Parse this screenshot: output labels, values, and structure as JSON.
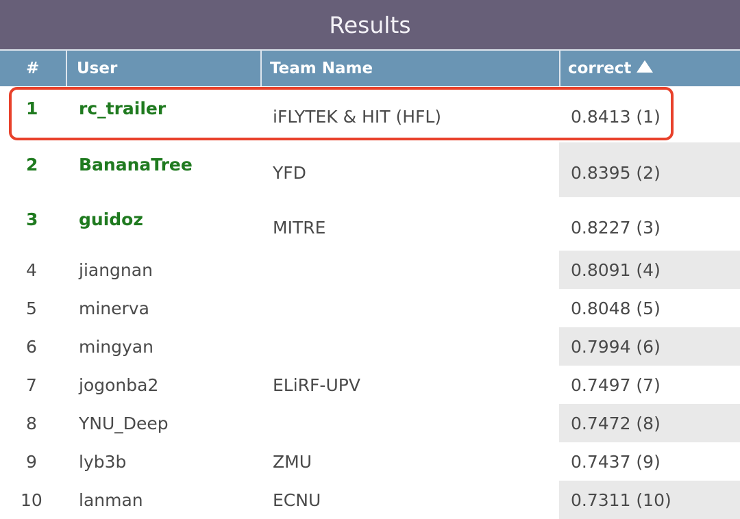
{
  "title": "Results",
  "columns": {
    "rank": "#",
    "user": "User",
    "team": "Team Name",
    "correct": "correct"
  },
  "sort": {
    "column": "correct",
    "direction": "ascending",
    "icon": "triangle-up-icon"
  },
  "colors": {
    "title_bar": "#675f78",
    "header": "#6a95b4",
    "top_rank_text": "#1f7a1f",
    "highlight": "#e8412b"
  },
  "rows": [
    {
      "rank": "1",
      "user": "rc_trailer",
      "team": "iFLYTEK & HIT (HFL)",
      "correct": "0.8413 (1)"
    },
    {
      "rank": "2",
      "user": "BananaTree",
      "team": "YFD",
      "correct": "0.8395 (2)"
    },
    {
      "rank": "3",
      "user": "guidoz",
      "team": "MITRE",
      "correct": "0.8227 (3)"
    },
    {
      "rank": "4",
      "user": "jiangnan",
      "team": "",
      "correct": "0.8091 (4)"
    },
    {
      "rank": "5",
      "user": "minerva",
      "team": "",
      "correct": "0.8048 (5)"
    },
    {
      "rank": "6",
      "user": "mingyan",
      "team": "",
      "correct": "0.7994 (6)"
    },
    {
      "rank": "7",
      "user": "jogonba2",
      "team": "ELiRF-UPV",
      "correct": "0.7497 (7)"
    },
    {
      "rank": "8",
      "user": "YNU_Deep",
      "team": "",
      "correct": "0.7472 (8)"
    },
    {
      "rank": "9",
      "user": "lyb3b",
      "team": "ZMU",
      "correct": "0.7437 (9)"
    },
    {
      "rank": "10",
      "user": "lanman",
      "team": "ECNU",
      "correct": "0.7311 (10)"
    }
  ]
}
